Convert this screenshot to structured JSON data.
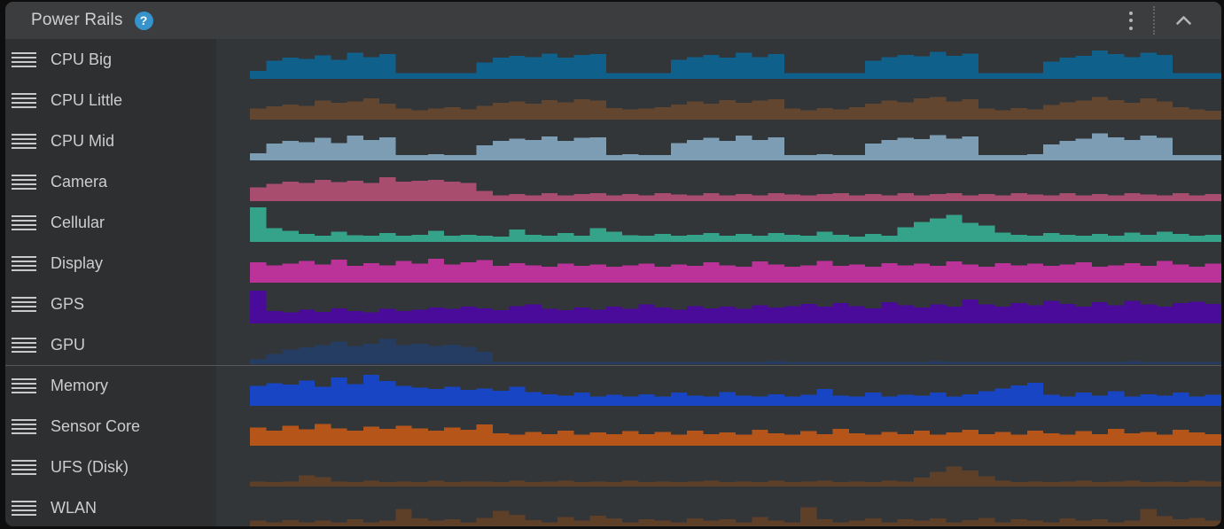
{
  "header": {
    "title": "Power Rails",
    "help_label": "?"
  },
  "colors": {
    "panel_bg": "#333639",
    "sidebar_bg": "#2D2F31",
    "header_bg": "#3B3D3F",
    "separator": "#56585B",
    "text": "#CFD0D2",
    "icon": "#B3B5B7",
    "help_bg": "#3693CC"
  },
  "chart_data": {
    "type": "area",
    "title": "Power Rails",
    "legend_position": "left-row-labels",
    "grid": false,
    "axes_labeled": false,
    "rails": [
      {
        "name": "CPU Big",
        "color": "#10608C",
        "values": [
          0.22,
          0.5,
          0.58,
          0.55,
          0.65,
          0.52,
          0.72,
          0.6,
          0.68,
          0.16,
          0.16,
          0.16,
          0.16,
          0.16,
          0.45,
          0.58,
          0.64,
          0.6,
          0.7,
          0.58,
          0.66,
          0.68,
          0.16,
          0.16,
          0.16,
          0.16,
          0.52,
          0.6,
          0.66,
          0.58,
          0.72,
          0.6,
          0.68,
          0.16,
          0.16,
          0.16,
          0.16,
          0.16,
          0.5,
          0.6,
          0.66,
          0.62,
          0.75,
          0.64,
          0.7,
          0.16,
          0.16,
          0.16,
          0.16,
          0.48,
          0.58,
          0.64,
          0.78,
          0.68,
          0.6,
          0.72,
          0.66,
          0.16,
          0.16,
          0.16
        ]
      },
      {
        "name": "CPU Little",
        "color": "#63462F",
        "values": [
          0.3,
          0.36,
          0.42,
          0.38,
          0.52,
          0.46,
          0.5,
          0.58,
          0.44,
          0.3,
          0.26,
          0.3,
          0.34,
          0.28,
          0.38,
          0.46,
          0.5,
          0.44,
          0.54,
          0.48,
          0.56,
          0.52,
          0.32,
          0.28,
          0.3,
          0.34,
          0.42,
          0.5,
          0.44,
          0.54,
          0.46,
          0.52,
          0.56,
          0.3,
          0.26,
          0.32,
          0.28,
          0.34,
          0.44,
          0.52,
          0.48,
          0.58,
          0.62,
          0.5,
          0.56,
          0.3,
          0.26,
          0.32,
          0.28,
          0.4,
          0.48,
          0.52,
          0.62,
          0.54,
          0.46,
          0.58,
          0.5,
          0.34,
          0.28,
          0.24
        ]
      },
      {
        "name": "CPU Mid",
        "color": "#7C9DB4",
        "values": [
          0.2,
          0.46,
          0.54,
          0.5,
          0.62,
          0.48,
          0.68,
          0.56,
          0.64,
          0.15,
          0.15,
          0.17,
          0.15,
          0.15,
          0.42,
          0.54,
          0.6,
          0.56,
          0.66,
          0.54,
          0.62,
          0.64,
          0.15,
          0.17,
          0.15,
          0.15,
          0.48,
          0.56,
          0.62,
          0.54,
          0.68,
          0.56,
          0.64,
          0.15,
          0.15,
          0.17,
          0.15,
          0.15,
          0.46,
          0.56,
          0.62,
          0.58,
          0.7,
          0.6,
          0.66,
          0.15,
          0.15,
          0.15,
          0.17,
          0.44,
          0.54,
          0.6,
          0.74,
          0.64,
          0.56,
          0.68,
          0.62,
          0.15,
          0.15,
          0.15
        ]
      },
      {
        "name": "Camera",
        "color": "#A84D6E",
        "values": [
          0.38,
          0.48,
          0.54,
          0.5,
          0.58,
          0.52,
          0.56,
          0.5,
          0.66,
          0.54,
          0.56,
          0.58,
          0.54,
          0.5,
          0.28,
          0.16,
          0.2,
          0.16,
          0.22,
          0.16,
          0.2,
          0.22,
          0.16,
          0.2,
          0.16,
          0.22,
          0.18,
          0.16,
          0.22,
          0.16,
          0.2,
          0.16,
          0.22,
          0.18,
          0.16,
          0.2,
          0.22,
          0.16,
          0.2,
          0.16,
          0.22,
          0.16,
          0.2,
          0.22,
          0.16,
          0.2,
          0.16,
          0.22,
          0.18,
          0.16,
          0.22,
          0.16,
          0.2,
          0.16,
          0.22,
          0.18,
          0.16,
          0.22,
          0.16,
          0.2
        ]
      },
      {
        "name": "Cellular",
        "color": "#35A28A",
        "values": [
          0.95,
          0.38,
          0.3,
          0.22,
          0.17,
          0.28,
          0.18,
          0.17,
          0.24,
          0.17,
          0.2,
          0.3,
          0.17,
          0.2,
          0.17,
          0.15,
          0.34,
          0.2,
          0.17,
          0.24,
          0.17,
          0.38,
          0.28,
          0.18,
          0.17,
          0.22,
          0.17,
          0.2,
          0.24,
          0.17,
          0.22,
          0.17,
          0.24,
          0.2,
          0.17,
          0.28,
          0.2,
          0.15,
          0.22,
          0.17,
          0.4,
          0.55,
          0.65,
          0.75,
          0.52,
          0.45,
          0.26,
          0.2,
          0.17,
          0.24,
          0.2,
          0.17,
          0.22,
          0.17,
          0.26,
          0.2,
          0.28,
          0.22,
          0.17,
          0.2
        ]
      },
      {
        "name": "Display",
        "color": "#BB3398",
        "values": [
          0.56,
          0.48,
          0.52,
          0.6,
          0.5,
          0.64,
          0.46,
          0.54,
          0.48,
          0.6,
          0.52,
          0.66,
          0.5,
          0.56,
          0.62,
          0.46,
          0.54,
          0.48,
          0.44,
          0.52,
          0.46,
          0.5,
          0.44,
          0.48,
          0.52,
          0.44,
          0.5,
          0.46,
          0.56,
          0.48,
          0.44,
          0.58,
          0.5,
          0.44,
          0.48,
          0.6,
          0.46,
          0.5,
          0.44,
          0.54,
          0.48,
          0.52,
          0.46,
          0.58,
          0.5,
          0.44,
          0.54,
          0.48,
          0.52,
          0.46,
          0.5,
          0.56,
          0.44,
          0.48,
          0.54,
          0.46,
          0.6,
          0.5,
          0.44,
          0.52
        ]
      },
      {
        "name": "GPS",
        "color": "#4A0B9A",
        "values": [
          0.9,
          0.34,
          0.3,
          0.38,
          0.32,
          0.42,
          0.34,
          0.3,
          0.4,
          0.34,
          0.38,
          0.44,
          0.4,
          0.46,
          0.42,
          0.36,
          0.48,
          0.52,
          0.4,
          0.36,
          0.44,
          0.38,
          0.46,
          0.4,
          0.52,
          0.44,
          0.38,
          0.48,
          0.42,
          0.46,
          0.4,
          0.5,
          0.44,
          0.48,
          0.54,
          0.46,
          0.56,
          0.48,
          0.42,
          0.58,
          0.5,
          0.44,
          0.52,
          0.46,
          0.66,
          0.52,
          0.46,
          0.56,
          0.5,
          0.62,
          0.54,
          0.46,
          0.58,
          0.5,
          0.62,
          0.52,
          0.46,
          0.56,
          0.6,
          0.54
        ]
      },
      {
        "name": "GPU",
        "color": "#253C63",
        "values": [
          0.14,
          0.28,
          0.4,
          0.46,
          0.52,
          0.62,
          0.5,
          0.56,
          0.7,
          0.52,
          0.56,
          0.5,
          0.54,
          0.48,
          0.34,
          0.06,
          0.06,
          0.06,
          0.06,
          0.06,
          0.06,
          0.06,
          0.06,
          0.06,
          0.06,
          0.06,
          0.06,
          0.06,
          0.06,
          0.06,
          0.06,
          0.06,
          0.08,
          0.06,
          0.06,
          0.06,
          0.06,
          0.06,
          0.06,
          0.06,
          0.06,
          0.06,
          0.08,
          0.06,
          0.06,
          0.06,
          0.06,
          0.06,
          0.06,
          0.06,
          0.06,
          0.06,
          0.06,
          0.06,
          0.08,
          0.06,
          0.06,
          0.06,
          0.06,
          0.06
        ]
      },
      {
        "name": "Memory",
        "color": "#1745C4",
        "section_start": true,
        "values": [
          0.55,
          0.62,
          0.58,
          0.7,
          0.52,
          0.78,
          0.6,
          0.85,
          0.68,
          0.55,
          0.5,
          0.46,
          0.52,
          0.44,
          0.48,
          0.42,
          0.52,
          0.38,
          0.32,
          0.28,
          0.36,
          0.26,
          0.3,
          0.26,
          0.32,
          0.26,
          0.36,
          0.28,
          0.26,
          0.38,
          0.28,
          0.26,
          0.32,
          0.26,
          0.3,
          0.46,
          0.28,
          0.26,
          0.36,
          0.26,
          0.3,
          0.28,
          0.36,
          0.26,
          0.32,
          0.4,
          0.48,
          0.56,
          0.64,
          0.3,
          0.26,
          0.36,
          0.28,
          0.4,
          0.26,
          0.32,
          0.28,
          0.36,
          0.26,
          0.3
        ]
      },
      {
        "name": "Sensor Core",
        "color": "#B5551A",
        "values": [
          0.5,
          0.42,
          0.55,
          0.45,
          0.6,
          0.48,
          0.42,
          0.52,
          0.46,
          0.55,
          0.48,
          0.42,
          0.5,
          0.44,
          0.58,
          0.34,
          0.3,
          0.38,
          0.32,
          0.42,
          0.3,
          0.36,
          0.32,
          0.4,
          0.32,
          0.38,
          0.3,
          0.42,
          0.32,
          0.36,
          0.3,
          0.44,
          0.34,
          0.3,
          0.4,
          0.32,
          0.46,
          0.34,
          0.3,
          0.38,
          0.32,
          0.42,
          0.3,
          0.36,
          0.44,
          0.32,
          0.38,
          0.3,
          0.42,
          0.34,
          0.3,
          0.4,
          0.32,
          0.46,
          0.34,
          0.38,
          0.3,
          0.44,
          0.36,
          0.32
        ]
      },
      {
        "name": "UFS (Disk)",
        "color": "#5E4029",
        "values": [
          0.14,
          0.12,
          0.14,
          0.3,
          0.26,
          0.14,
          0.12,
          0.16,
          0.12,
          0.14,
          0.12,
          0.16,
          0.12,
          0.14,
          0.14,
          0.12,
          0.16,
          0.12,
          0.14,
          0.16,
          0.12,
          0.14,
          0.12,
          0.16,
          0.12,
          0.14,
          0.12,
          0.14,
          0.16,
          0.12,
          0.14,
          0.12,
          0.16,
          0.12,
          0.14,
          0.16,
          0.12,
          0.14,
          0.12,
          0.16,
          0.14,
          0.24,
          0.4,
          0.55,
          0.44,
          0.28,
          0.16,
          0.12,
          0.14,
          0.12,
          0.14,
          0.16,
          0.12,
          0.14,
          0.16,
          0.12,
          0.14,
          0.12,
          0.16,
          0.14
        ]
      },
      {
        "name": "WLAN",
        "color": "#5E3F28",
        "values": [
          0.18,
          0.14,
          0.2,
          0.14,
          0.18,
          0.14,
          0.22,
          0.14,
          0.18,
          0.5,
          0.24,
          0.18,
          0.22,
          0.14,
          0.26,
          0.45,
          0.34,
          0.2,
          0.14,
          0.28,
          0.18,
          0.32,
          0.24,
          0.14,
          0.22,
          0.18,
          0.14,
          0.24,
          0.18,
          0.22,
          0.14,
          0.28,
          0.18,
          0.14,
          0.55,
          0.22,
          0.14,
          0.18,
          0.24,
          0.14,
          0.22,
          0.18,
          0.24,
          0.14,
          0.2,
          0.26,
          0.14,
          0.22,
          0.18,
          0.14,
          0.24,
          0.18,
          0.22,
          0.14,
          0.18,
          0.5,
          0.3,
          0.22,
          0.26,
          0.18
        ]
      }
    ]
  }
}
